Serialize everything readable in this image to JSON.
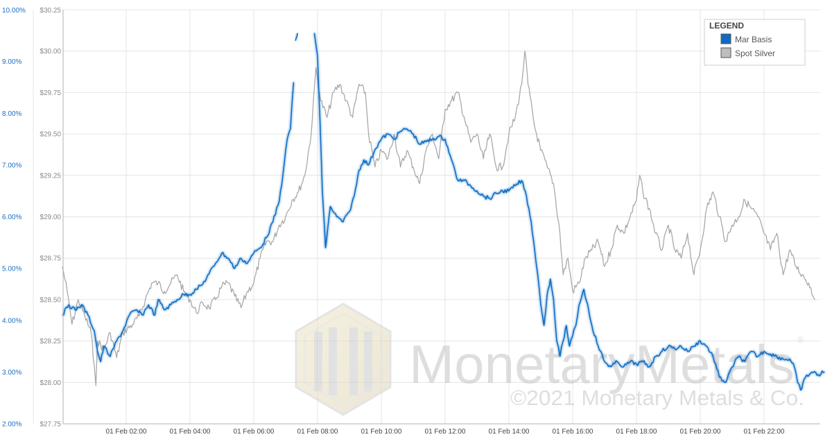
{
  "chart_data": {
    "type": "line",
    "title": "",
    "xlabel": "",
    "ylabel_left": "",
    "ylabel_right": "",
    "x_ticks": [
      "01 Feb 02:00",
      "01 Feb 04:00",
      "01 Feb 06:00",
      "01 Feb 08:00",
      "01 Feb 10:00",
      "01 Feb 12:00",
      "01 Feb 14:00",
      "01 Feb 16:00",
      "01 Feb 18:00",
      "01 Feb 20:00",
      "01 Feb 22:00"
    ],
    "xlim_hours": [
      0,
      24
    ],
    "y_left": {
      "ticks": [
        "2.00%",
        "3.00%",
        "4.00%",
        "5.00%",
        "6.00%",
        "7.00%",
        "8.00%",
        "9.00%",
        "10.00%"
      ],
      "range": [
        2,
        10
      ],
      "color": "#1a6fc0"
    },
    "y_right": {
      "ticks": [
        "$27.75",
        "$28.00",
        "$28.25",
        "$28.50",
        "$28.75",
        "$29.00",
        "$29.25",
        "$29.50",
        "$29.75",
        "$30.00",
        "$30.25"
      ],
      "range": [
        27.75,
        30.25
      ],
      "color": "#888888"
    },
    "grid": true,
    "legend": {
      "title": "LEGEND",
      "position": "top-right"
    },
    "series": [
      {
        "name": "Spot Silver",
        "axis": "right",
        "color": "#a8a8a8",
        "points": [
          [
            0.0,
            28.7
          ],
          [
            0.15,
            28.55
          ],
          [
            0.3,
            28.35
          ],
          [
            0.5,
            28.5
          ],
          [
            0.7,
            28.4
          ],
          [
            0.9,
            28.3
          ],
          [
            1.0,
            28.1
          ],
          [
            1.05,
            27.98
          ],
          [
            1.1,
            28.25
          ],
          [
            1.3,
            28.2
          ],
          [
            1.5,
            28.3
          ],
          [
            1.7,
            28.15
          ],
          [
            1.9,
            28.3
          ],
          [
            2.2,
            28.35
          ],
          [
            2.4,
            28.4
          ],
          [
            2.6,
            28.5
          ],
          [
            2.8,
            28.6
          ],
          [
            3.0,
            28.6
          ],
          [
            3.2,
            28.55
          ],
          [
            3.4,
            28.6
          ],
          [
            3.6,
            28.65
          ],
          [
            3.8,
            28.55
          ],
          [
            4.0,
            28.5
          ],
          [
            4.2,
            28.42
          ],
          [
            4.4,
            28.48
          ],
          [
            4.6,
            28.45
          ],
          [
            4.8,
            28.5
          ],
          [
            5.0,
            28.58
          ],
          [
            5.2,
            28.6
          ],
          [
            5.4,
            28.52
          ],
          [
            5.6,
            28.45
          ],
          [
            5.8,
            28.55
          ],
          [
            6.0,
            28.6
          ],
          [
            6.2,
            28.75
          ],
          [
            6.4,
            28.85
          ],
          [
            6.6,
            28.85
          ],
          [
            6.8,
            28.95
          ],
          [
            7.0,
            29.0
          ],
          [
            7.2,
            29.1
          ],
          [
            7.4,
            29.15
          ],
          [
            7.6,
            29.25
          ],
          [
            7.8,
            29.5
          ],
          [
            7.95,
            29.9
          ],
          [
            8.1,
            29.7
          ],
          [
            8.3,
            29.6
          ],
          [
            8.5,
            29.75
          ],
          [
            8.7,
            29.8
          ],
          [
            8.9,
            29.7
          ],
          [
            9.1,
            29.6
          ],
          [
            9.3,
            29.8
          ],
          [
            9.5,
            29.75
          ],
          [
            9.6,
            29.5
          ],
          [
            9.8,
            29.3
          ],
          [
            10.0,
            29.4
          ],
          [
            10.2,
            29.35
          ],
          [
            10.4,
            29.5
          ],
          [
            10.6,
            29.3
          ],
          [
            10.8,
            29.4
          ],
          [
            11.0,
            29.3
          ],
          [
            11.2,
            29.2
          ],
          [
            11.4,
            29.4
          ],
          [
            11.6,
            29.5
          ],
          [
            11.8,
            29.35
          ],
          [
            12.0,
            29.65
          ],
          [
            12.2,
            29.7
          ],
          [
            12.4,
            29.75
          ],
          [
            12.6,
            29.6
          ],
          [
            12.8,
            29.45
          ],
          [
            13.0,
            29.5
          ],
          [
            13.2,
            29.35
          ],
          [
            13.4,
            29.5
          ],
          [
            13.6,
            29.3
          ],
          [
            13.8,
            29.3
          ],
          [
            14.0,
            29.5
          ],
          [
            14.2,
            29.6
          ],
          [
            14.4,
            29.8
          ],
          [
            14.5,
            30.0
          ],
          [
            14.6,
            29.8
          ],
          [
            14.8,
            29.55
          ],
          [
            15.0,
            29.4
          ],
          [
            15.2,
            29.3
          ],
          [
            15.4,
            29.2
          ],
          [
            15.6,
            28.9
          ],
          [
            15.7,
            28.65
          ],
          [
            15.85,
            28.75
          ],
          [
            16.0,
            28.55
          ],
          [
            16.2,
            28.6
          ],
          [
            16.4,
            28.75
          ],
          [
            16.6,
            28.8
          ],
          [
            16.8,
            28.85
          ],
          [
            17.0,
            28.7
          ],
          [
            17.2,
            28.8
          ],
          [
            17.4,
            28.95
          ],
          [
            17.6,
            28.9
          ],
          [
            17.8,
            29.0
          ],
          [
            18.0,
            29.1
          ],
          [
            18.1,
            29.25
          ],
          [
            18.2,
            29.15
          ],
          [
            18.4,
            29.05
          ],
          [
            18.6,
            28.9
          ],
          [
            18.8,
            28.8
          ],
          [
            19.0,
            28.95
          ],
          [
            19.2,
            28.8
          ],
          [
            19.4,
            28.75
          ],
          [
            19.6,
            28.9
          ],
          [
            19.8,
            28.65
          ],
          [
            20.0,
            28.8
          ],
          [
            20.2,
            29.05
          ],
          [
            20.4,
            29.15
          ],
          [
            20.6,
            29.0
          ],
          [
            20.8,
            28.85
          ],
          [
            21.0,
            28.95
          ],
          [
            21.2,
            29.0
          ],
          [
            21.4,
            29.1
          ],
          [
            21.6,
            29.05
          ],
          [
            21.8,
            29.0
          ],
          [
            22.0,
            28.9
          ],
          [
            22.2,
            28.8
          ],
          [
            22.4,
            28.9
          ],
          [
            22.6,
            28.65
          ],
          [
            22.8,
            28.8
          ],
          [
            23.0,
            28.7
          ],
          [
            23.2,
            28.65
          ],
          [
            23.4,
            28.6
          ],
          [
            23.6,
            28.5
          ]
        ]
      },
      {
        "name": "Mar Basis",
        "axis": "left",
        "color": "#0e6ac4",
        "segments": [
          [
            [
              0.0,
              4.1
            ],
            [
              0.2,
              4.3
            ],
            [
              0.4,
              4.2
            ],
            [
              0.6,
              4.3
            ],
            [
              0.8,
              4.1
            ],
            [
              1.0,
              3.8
            ],
            [
              1.1,
              3.4
            ],
            [
              1.2,
              3.2
            ],
            [
              1.3,
              3.5
            ],
            [
              1.5,
              3.3
            ],
            [
              1.7,
              3.6
            ],
            [
              1.9,
              3.8
            ],
            [
              2.1,
              4.1
            ],
            [
              2.3,
              4.2
            ],
            [
              2.5,
              4.1
            ],
            [
              2.7,
              4.3
            ],
            [
              2.9,
              4.1
            ],
            [
              3.0,
              4.4
            ],
            [
              3.2,
              4.2
            ],
            [
              3.4,
              4.3
            ],
            [
              3.6,
              4.4
            ],
            [
              3.8,
              4.5
            ],
            [
              4.0,
              4.5
            ],
            [
              4.2,
              4.6
            ],
            [
              4.4,
              4.7
            ],
            [
              4.6,
              4.9
            ],
            [
              4.8,
              5.1
            ],
            [
              5.0,
              5.3
            ],
            [
              5.2,
              5.2
            ],
            [
              5.4,
              5.0
            ],
            [
              5.6,
              5.2
            ],
            [
              5.8,
              5.1
            ],
            [
              6.0,
              5.3
            ],
            [
              6.2,
              5.4
            ],
            [
              6.4,
              5.6
            ],
            [
              6.6,
              5.9
            ],
            [
              6.8,
              6.3
            ],
            [
              6.95,
              7.0
            ],
            [
              7.05,
              7.5
            ],
            [
              7.15,
              7.7
            ],
            [
              7.2,
              8.2
            ],
            [
              7.25,
              8.6
            ]
          ],
          [
            [
              7.3,
              9.4
            ],
            [
              7.38,
              9.55
            ]
          ],
          [
            [
              7.9,
              9.55
            ],
            [
              8.0,
              9.1
            ],
            [
              8.08,
              7.8
            ],
            [
              8.15,
              6.5
            ],
            [
              8.25,
              5.4
            ],
            [
              8.4,
              6.2
            ],
            [
              8.6,
              6.0
            ],
            [
              8.8,
              5.9
            ],
            [
              9.0,
              6.1
            ],
            [
              9.15,
              6.4
            ],
            [
              9.3,
              6.9
            ],
            [
              9.45,
              7.1
            ],
            [
              9.6,
              7.0
            ],
            [
              9.8,
              7.3
            ],
            [
              10.0,
              7.5
            ],
            [
              10.2,
              7.6
            ],
            [
              10.4,
              7.5
            ],
            [
              10.6,
              7.65
            ],
            [
              10.8,
              7.7
            ],
            [
              11.0,
              7.6
            ],
            [
              11.2,
              7.4
            ],
            [
              11.4,
              7.45
            ],
            [
              11.6,
              7.5
            ],
            [
              11.8,
              7.55
            ],
            [
              12.0,
              7.5
            ],
            [
              12.2,
              7.1
            ],
            [
              12.4,
              6.7
            ],
            [
              12.6,
              6.7
            ],
            [
              12.8,
              6.6
            ],
            [
              13.0,
              6.5
            ],
            [
              13.2,
              6.4
            ],
            [
              13.4,
              6.35
            ],
            [
              13.6,
              6.45
            ],
            [
              13.8,
              6.5
            ],
            [
              14.0,
              6.5
            ],
            [
              14.2,
              6.6
            ],
            [
              14.4,
              6.7
            ],
            [
              14.55,
              6.4
            ],
            [
              14.7,
              5.9
            ],
            [
              14.8,
              5.4
            ],
            [
              14.9,
              4.9
            ],
            [
              15.0,
              4.3
            ],
            [
              15.1,
              3.9
            ],
            [
              15.2,
              4.5
            ],
            [
              15.3,
              4.8
            ],
            [
              15.4,
              4.4
            ],
            [
              15.5,
              3.6
            ],
            [
              15.6,
              3.3
            ],
            [
              15.7,
              3.6
            ],
            [
              15.8,
              3.9
            ],
            [
              15.9,
              3.5
            ],
            [
              16.0,
              3.7
            ],
            [
              16.1,
              3.9
            ],
            [
              16.2,
              4.3
            ],
            [
              16.35,
              4.6
            ],
            [
              16.5,
              4.2
            ],
            [
              16.6,
              3.9
            ],
            [
              16.8,
              3.5
            ],
            [
              17.0,
              3.2
            ],
            [
              17.2,
              3.1
            ],
            [
              17.4,
              3.2
            ],
            [
              17.6,
              3.1
            ],
            [
              17.8,
              3.2
            ],
            [
              18.0,
              3.15
            ],
            [
              18.2,
              3.2
            ],
            [
              18.4,
              3.1
            ],
            [
              18.6,
              3.3
            ],
            [
              18.8,
              3.4
            ],
            [
              19.0,
              3.5
            ],
            [
              19.2,
              3.45
            ],
            [
              19.4,
              3.5
            ],
            [
              19.6,
              3.4
            ],
            [
              19.8,
              3.5
            ],
            [
              20.0,
              3.6
            ],
            [
              20.2,
              3.5
            ],
            [
              20.4,
              3.3
            ],
            [
              20.6,
              2.9
            ],
            [
              20.8,
              2.8
            ],
            [
              21.0,
              3.1
            ],
            [
              21.2,
              3.3
            ],
            [
              21.4,
              3.2
            ],
            [
              21.6,
              3.4
            ],
            [
              21.8,
              3.3
            ],
            [
              22.0,
              3.4
            ],
            [
              22.2,
              3.35
            ],
            [
              22.4,
              3.3
            ],
            [
              22.6,
              3.25
            ],
            [
              22.8,
              3.25
            ],
            [
              22.95,
              3.1
            ],
            [
              23.05,
              2.8
            ],
            [
              23.15,
              2.65
            ],
            [
              23.3,
              2.9
            ],
            [
              23.5,
              3.0
            ],
            [
              23.7,
              2.95
            ],
            [
              23.9,
              3.0
            ]
          ]
        ]
      }
    ]
  },
  "watermark": {
    "brand": "MonetaryMetals",
    "registered": "®",
    "copyright": "©2021 Monetary Metals & Co."
  }
}
